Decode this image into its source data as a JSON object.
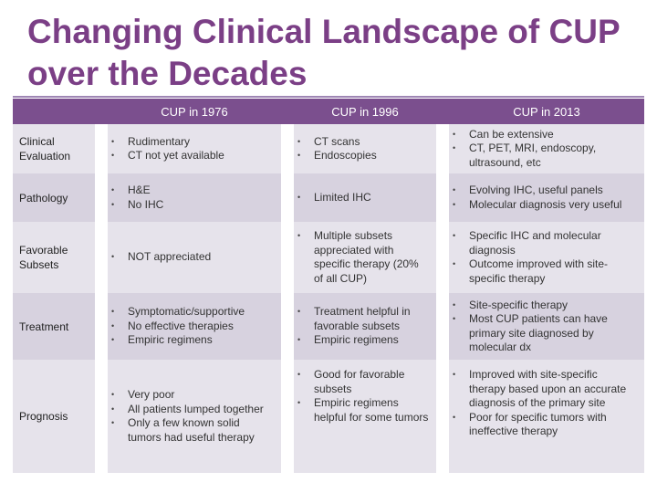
{
  "title": "Changing Clinical Landscape of CUP over the Decades",
  "columns": [
    "CUP in 1976",
    "CUP in 1996",
    "CUP in 2013"
  ],
  "rows": [
    {
      "label": "Clinical Evaluation",
      "c1976": [
        "Rudimentary",
        "CT not yet available"
      ],
      "c1996": [
        "CT scans",
        "Endoscopies"
      ],
      "c2013": [
        "Can be extensive",
        "CT, PET, MRI, endoscopy, ultrasound, etc"
      ]
    },
    {
      "label": "Pathology",
      "c1976": [
        "H&E",
        "No IHC"
      ],
      "c1996": [
        "Limited IHC"
      ],
      "c2013": [
        "Evolving IHC, useful panels",
        "Molecular diagnosis very useful"
      ]
    },
    {
      "label": "Favorable Subsets",
      "c1976": [
        "NOT appreciated"
      ],
      "c1996": [
        "Multiple subsets appreciated with specific therapy (20% of all CUP)"
      ],
      "c2013": [
        "Specific IHC and molecular diagnosis",
        "Outcome improved with site-specific therapy"
      ]
    },
    {
      "label": "Treatment",
      "c1976": [
        "Symptomatic/supportive",
        "No effective therapies",
        "Empiric regimens"
      ],
      "c1996": [
        "Treatment helpful in favorable subsets",
        "Empiric regimens"
      ],
      "c2013": [
        "Site-specific therapy",
        "Most CUP patients can have primary site diagnosed by molecular dx"
      ]
    },
    {
      "label": "Prognosis",
      "c1976": [
        "Very poor",
        "All patients lumped together",
        "Only a few known solid tumors had useful therapy"
      ],
      "c1996": [
        "Good for favorable subsets",
        "Empiric regimens helpful for some tumors"
      ],
      "c2013": [
        "Improved with site-specific therapy based upon an accurate diagnosis of the primary site",
        "Poor for specific tumors with ineffective therapy"
      ]
    }
  ]
}
